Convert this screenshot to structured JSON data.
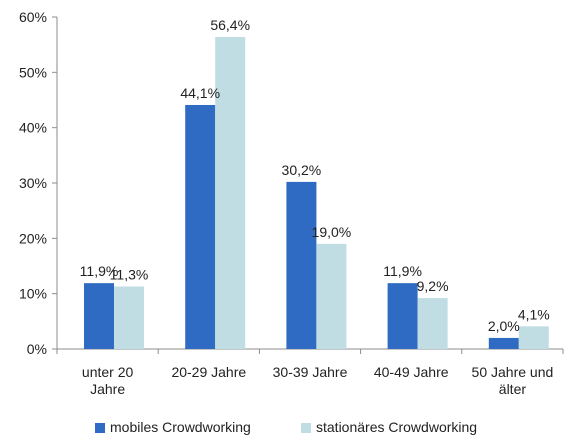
{
  "chart_data": {
    "type": "bar",
    "categories": [
      [
        "unter 20",
        "Jahre"
      ],
      [
        "20-29 Jahre"
      ],
      [
        "30-39 Jahre"
      ],
      [
        "40-49 Jahre"
      ],
      [
        "50 Jahre und",
        "älter"
      ]
    ],
    "series": [
      {
        "name": "mobiles Crowdworking",
        "color": "#2f6bc2",
        "values": [
          11.9,
          44.1,
          30.2,
          11.9,
          2.0
        ],
        "labels": [
          "11,9%",
          "44,1%",
          "30,2%",
          "11,9%",
          "2,0%"
        ]
      },
      {
        "name": "stationäres Crowdworking",
        "color": "#bfdde2",
        "values": [
          11.3,
          56.4,
          19.0,
          9.2,
          4.1
        ],
        "labels": [
          "11,3%",
          "56,4%",
          "19,0%",
          "9,2%",
          "4,1%"
        ]
      }
    ],
    "ylim": [
      0,
      60
    ],
    "yticks": [
      0,
      10,
      20,
      30,
      40,
      50,
      60
    ],
    "ytick_labels": [
      "0%",
      "10%",
      "20%",
      "30%",
      "40%",
      "50%",
      "60%"
    ],
    "grid": false,
    "legend_position": "bottom"
  }
}
